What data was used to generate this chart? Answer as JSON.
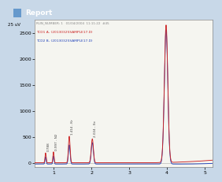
{
  "title_bar": "Report",
  "header_line1": "RUN_NUMBER: 1   01/04/2004  11:11:22  #45",
  "legend_line1": "TCD1 A, (20130325SAMPLE17.D)",
  "legend_line2": "TCD2 B, (20130325SAMPLE17.D)",
  "ylabel_top": "25 uV",
  "yticks": [
    0,
    500,
    1000,
    1500,
    2000,
    2500
  ],
  "xticks": [
    1,
    2,
    3,
    4,
    5
  ],
  "xlim": [
    0.5,
    5.2
  ],
  "ylim": [
    -80,
    2750
  ],
  "bg_color": "#c8d8e8",
  "plot_bg": "#f5f5f0",
  "color_red": "#cc2222",
  "color_blue": "#2244bb",
  "title_bg": "#3a6aa0",
  "header_color": "#888888",
  "peak_label_color": "#444444"
}
